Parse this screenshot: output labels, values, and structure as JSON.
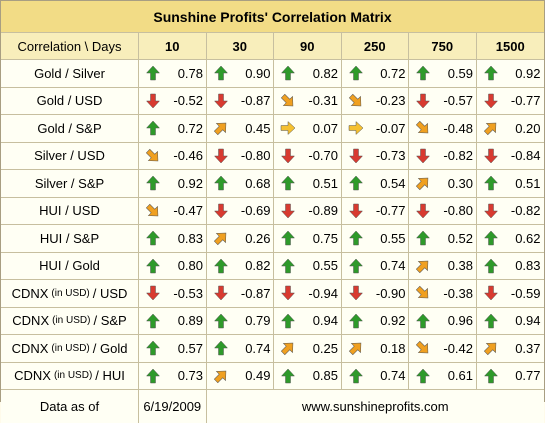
{
  "title": "Sunshine Profits' Correlation Matrix",
  "header": {
    "corner": "Correlation \\ Days",
    "periods": [
      "10",
      "30",
      "90",
      "250",
      "750",
      "1500"
    ]
  },
  "rows": [
    {
      "label": "Gold / Silver",
      "values": [
        "0.78",
        "0.90",
        "0.82",
        "0.72",
        "0.59",
        "0.92"
      ],
      "arrows": [
        "up-green",
        "up-green",
        "up-green",
        "up-green",
        "up-green",
        "up-green"
      ]
    },
    {
      "label": "Gold / USD",
      "values": [
        "-0.52",
        "-0.87",
        "-0.31",
        "-0.23",
        "-0.57",
        "-0.77"
      ],
      "arrows": [
        "down-red",
        "down-red",
        "downright-orange",
        "downright-orange",
        "down-red",
        "down-red"
      ]
    },
    {
      "label": "Gold / S&P",
      "values": [
        "0.72",
        "0.45",
        "0.07",
        "-0.07",
        "-0.48",
        "0.20"
      ],
      "arrows": [
        "up-green",
        "upright-orange",
        "right-yellow",
        "right-yellow",
        "downright-orange",
        "upright-orange"
      ]
    },
    {
      "label": "Silver / USD",
      "values": [
        "-0.46",
        "-0.80",
        "-0.70",
        "-0.73",
        "-0.82",
        "-0.84"
      ],
      "arrows": [
        "downright-orange",
        "down-red",
        "down-red",
        "down-red",
        "down-red",
        "down-red"
      ]
    },
    {
      "label": "Silver / S&P",
      "values": [
        "0.92",
        "0.68",
        "0.51",
        "0.54",
        "0.30",
        "0.51"
      ],
      "arrows": [
        "up-green",
        "up-green",
        "up-green",
        "up-green",
        "upright-orange",
        "up-green"
      ]
    },
    {
      "label": "HUI / USD",
      "values": [
        "-0.47",
        "-0.69",
        "-0.89",
        "-0.77",
        "-0.80",
        "-0.82"
      ],
      "arrows": [
        "downright-orange",
        "down-red",
        "down-red",
        "down-red",
        "down-red",
        "down-red"
      ]
    },
    {
      "label": "HUI / S&P",
      "values": [
        "0.83",
        "0.26",
        "0.75",
        "0.55",
        "0.52",
        "0.62"
      ],
      "arrows": [
        "up-green",
        "upright-orange",
        "up-green",
        "up-green",
        "up-green",
        "up-green"
      ]
    },
    {
      "label": "HUI / Gold",
      "values": [
        "0.80",
        "0.82",
        "0.55",
        "0.74",
        "0.38",
        "0.83"
      ],
      "arrows": [
        "up-green",
        "up-green",
        "up-green",
        "up-green",
        "upright-orange",
        "up-green"
      ]
    },
    {
      "label_main": "CDNX",
      "label_small": "(in USD)",
      "label_tail": "/ USD",
      "values": [
        "-0.53",
        "-0.87",
        "-0.94",
        "-0.90",
        "-0.38",
        "-0.59"
      ],
      "arrows": [
        "down-red",
        "down-red",
        "down-red",
        "down-red",
        "downright-orange",
        "down-red"
      ]
    },
    {
      "label_main": "CDNX",
      "label_small": "(in USD)",
      "label_tail": "/ S&P",
      "values": [
        "0.89",
        "0.79",
        "0.94",
        "0.92",
        "0.96",
        "0.94"
      ],
      "arrows": [
        "up-green",
        "up-green",
        "up-green",
        "up-green",
        "up-green",
        "up-green"
      ]
    },
    {
      "label_main": "CDNX",
      "label_small": "(in USD)",
      "label_tail": "/ Gold",
      "values": [
        "0.57",
        "0.74",
        "0.25",
        "0.18",
        "-0.42",
        "0.37"
      ],
      "arrows": [
        "up-green",
        "up-green",
        "upright-orange",
        "upright-orange",
        "downright-orange",
        "upright-orange"
      ]
    },
    {
      "label_main": "CDNX",
      "label_small": "(in USD)",
      "label_tail": "/ HUI",
      "values": [
        "0.73",
        "0.49",
        "0.85",
        "0.74",
        "0.61",
        "0.77"
      ],
      "arrows": [
        "up-green",
        "upright-orange",
        "up-green",
        "up-green",
        "up-green",
        "up-green"
      ]
    }
  ],
  "footer": {
    "label": "Data as of",
    "date": "6/19/2009",
    "site": "www.sunshineprofits.com"
  },
  "colors": {
    "up-green": "#2e9a2a",
    "down-red": "#d83a30",
    "orange": "#f0a020",
    "yellow": "#f5c030",
    "title_bg": "#f2dc86",
    "header_bg": "#f8eebb"
  }
}
